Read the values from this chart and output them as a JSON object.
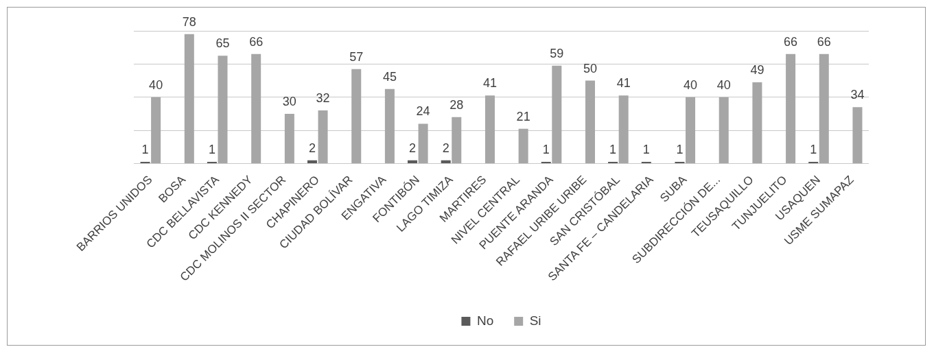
{
  "chart_data": {
    "type": "bar",
    "categories": [
      "BARRIOS UNIDOS",
      "BOSA",
      "CDC BELLAVISTA",
      "CDC KENNEDY",
      "CDC MOLINOS II SECTOR",
      "CHAPINERO",
      "CIUDAD BOLÍVAR",
      "ENGATIVA",
      "FONTIBÓN",
      "LAGO TIMIZA",
      "MARTIRES",
      "NIVEL CENTRAL",
      "PUENTE ARANDA",
      "RAFAEL URIBE URIBE",
      "SAN CRISTÓBAL",
      "SANTA FE – CANDELARIA",
      "SUBA",
      "SUBDIRECCIÓN DE...",
      "TEUSAQUILLO",
      "TUNJUELITO",
      "USAQUEN",
      "USME SUMAPAZ"
    ],
    "series": [
      {
        "name": "No",
        "color": "#5a5a5a",
        "values": [
          1,
          null,
          1,
          null,
          null,
          2,
          null,
          null,
          2,
          2,
          null,
          null,
          1,
          null,
          1,
          1,
          1,
          null,
          null,
          null,
          1,
          null
        ]
      },
      {
        "name": "Si",
        "color": "#a6a6a6",
        "values": [
          40,
          78,
          65,
          66,
          30,
          32,
          57,
          45,
          24,
          28,
          41,
          21,
          59,
          50,
          41,
          null,
          40,
          40,
          49,
          66,
          66,
          34
        ]
      }
    ],
    "ylim": [
      0,
      80
    ],
    "yticks": [
      {
        "value": 0,
        "label": null
      },
      {
        "value": 20,
        "label": null
      },
      {
        "value": 40,
        "label": null
      },
      {
        "value": 60,
        "label": null
      },
      {
        "value": 80,
        "label": null
      }
    ],
    "grid": "y",
    "legend": "bottom",
    "tick_labels": "x",
    "data_labels": true
  }
}
